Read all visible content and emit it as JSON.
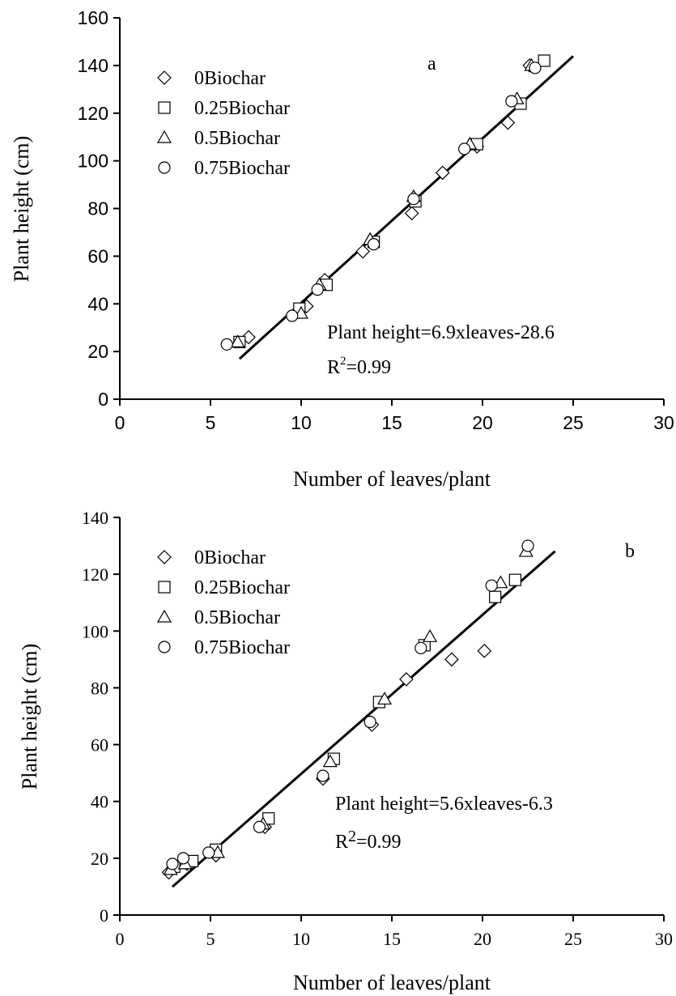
{
  "chart_data": [
    {
      "type": "scatter",
      "panel_label": "a",
      "ylabel": "Plant height (cm)",
      "xlabel": "Number of leaves/plant",
      "xlim": [
        0,
        30
      ],
      "ylim": [
        0,
        160
      ],
      "xticks": [
        0,
        5,
        10,
        15,
        20,
        25,
        30
      ],
      "yticks": [
        0,
        20,
        40,
        60,
        80,
        100,
        120,
        140,
        160
      ],
      "tick_font": "sans",
      "legend_position": "top-left",
      "equation": "Plant height=6.9xleaves-28.6",
      "r2_prefix": "R",
      "r2_exponent": "2",
      "r2_value": "=0.99",
      "fit": {
        "slope": 6.9,
        "intercept": -28.6,
        "x_range": [
          6.6,
          25
        ]
      },
      "series": [
        {
          "name": "0Biochar",
          "marker": "diamond",
          "x": [
            7.1,
            10.3,
            11.3,
            13.4,
            16.1,
            17.8,
            19.7,
            21.4,
            22.6
          ],
          "y": [
            26,
            39,
            50,
            62,
            78,
            95,
            106,
            116,
            140
          ]
        },
        {
          "name": "0.25Biochar",
          "marker": "square",
          "x": [
            6.6,
            9.9,
            11.4,
            14.0,
            16.3,
            19.7,
            22.1,
            23.4
          ],
          "y": [
            24,
            38,
            48,
            66,
            83,
            107,
            124,
            142
          ]
        },
        {
          "name": "0.5Biochar",
          "marker": "triangle",
          "x": [
            6.5,
            10.0,
            11.0,
            13.8,
            16.2,
            19.3,
            21.9,
            22.7
          ],
          "y": [
            24,
            36,
            48,
            67,
            85,
            107,
            126,
            140
          ]
        },
        {
          "name": "0.75Biochar",
          "marker": "circle",
          "x": [
            5.9,
            9.5,
            10.9,
            14.0,
            16.2,
            19.0,
            21.6,
            22.9
          ],
          "y": [
            23,
            35,
            46,
            65,
            84,
            105,
            125,
            139
          ]
        }
      ]
    },
    {
      "type": "scatter",
      "panel_label": "b",
      "ylabel": "Plant height (cm)",
      "xlabel": "Number of leaves/plant",
      "xlim": [
        0,
        30
      ],
      "ylim": [
        0,
        140
      ],
      "xticks": [
        0,
        5,
        10,
        15,
        20,
        25,
        30
      ],
      "yticks": [
        0,
        20,
        40,
        60,
        80,
        100,
        120,
        140
      ],
      "tick_font": "serif",
      "legend_position": "top-left",
      "equation": "Plant height=5.6xleaves-6.3",
      "r2_prefix": "R",
      "r2_exponent": "2",
      "r2_value": "=0.99",
      "fit": {
        "slope": 5.6,
        "intercept": -6.3,
        "x_range": [
          2.9,
          24.0
        ]
      },
      "series": [
        {
          "name": "0Biochar",
          "marker": "diamond",
          "x": [
            2.7,
            3.7,
            5.3,
            8.0,
            11.2,
            13.9,
            15.8,
            18.3,
            20.1
          ],
          "y": [
            15,
            18,
            21,
            31,
            48,
            67,
            83,
            90,
            93
          ]
        },
        {
          "name": "0.25Biochar",
          "marker": "square",
          "x": [
            3.0,
            4.0,
            5.3,
            8.2,
            11.8,
            14.3,
            16.8,
            20.7,
            21.8
          ],
          "y": [
            17,
            19,
            23,
            34,
            55,
            75,
            95,
            112,
            118
          ]
        },
        {
          "name": "0.5Biochar",
          "marker": "triangle",
          "x": [
            2.8,
            3.6,
            5.4,
            7.9,
            11.6,
            14.6,
            17.1,
            21.0,
            22.4
          ],
          "y": [
            16,
            18,
            22,
            32,
            54,
            76,
            98,
            117,
            128
          ]
        },
        {
          "name": "0.75Biochar",
          "marker": "circle",
          "x": [
            2.9,
            3.5,
            4.9,
            7.7,
            11.2,
            13.8,
            16.6,
            20.5,
            22.5
          ],
          "y": [
            18,
            20,
            22,
            31,
            49,
            68,
            94,
            116,
            130
          ]
        }
      ]
    }
  ]
}
